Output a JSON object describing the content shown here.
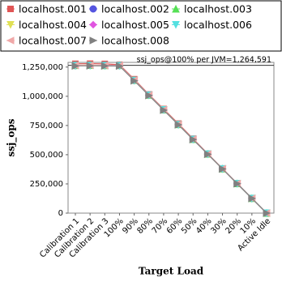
{
  "chart_data": {
    "type": "line",
    "x_label": "Target Load",
    "y_label": "ssj_ops",
    "annotation": "ssj_ops@100% per JVM=1,264,591",
    "reference_line": 1264591,
    "categories": [
      "Calibration 1",
      "Calibration 2",
      "Calibration 3",
      "100%",
      "90%",
      "80%",
      "70%",
      "60%",
      "50%",
      "40%",
      "30%",
      "20%",
      "10%",
      "Active Idle"
    ],
    "ylim": [
      0,
      1290000
    ],
    "yticks": [
      0,
      {
        "value": 250000,
        "label": "250,000"
      },
      {
        "value": 500000,
        "label": "500,000"
      },
      {
        "value": 750000,
        "label": "750,000"
      },
      {
        "value": 1000000,
        "label": "1,000,000"
      },
      {
        "value": 1250000,
        "label": "1,250,000"
      }
    ],
    "grid": false,
    "series": [
      {
        "name": "localhost.001",
        "color": "#e05555",
        "marker": "square",
        "values": [
          1278000,
          1279000,
          1277000,
          1270000,
          1146000,
          1016000,
          891000,
          766000,
          637000,
          509000,
          382000,
          255000,
          128000,
          0
        ]
      },
      {
        "name": "localhost.002",
        "color": "#5555e0",
        "marker": "circle",
        "values": [
          1263000,
          1264000,
          1263000,
          1263000,
          1136000,
          1010000,
          884000,
          758000,
          631000,
          505000,
          379000,
          253000,
          126000,
          0
        ]
      },
      {
        "name": "localhost.003",
        "color": "#55e055",
        "marker": "triangle-up",
        "values": [
          1265000,
          1266000,
          1264000,
          1265000,
          1138000,
          1011000,
          885000,
          759000,
          632000,
          506000,
          380000,
          253000,
          127000,
          0
        ]
      },
      {
        "name": "localhost.004",
        "color": "#e0e055",
        "marker": "triangle-down",
        "values": [
          1262000,
          1263000,
          1262000,
          1261000,
          1135000,
          1009000,
          883000,
          757000,
          631000,
          505000,
          378000,
          252000,
          126000,
          0
        ]
      },
      {
        "name": "localhost.005",
        "color": "#e055e0",
        "marker": "diamond",
        "values": [
          1264000,
          1265000,
          1264000,
          1264000,
          1137000,
          1011000,
          884000,
          758000,
          632000,
          506000,
          379000,
          253000,
          126000,
          0
        ]
      },
      {
        "name": "localhost.006",
        "color": "#55e0e0",
        "marker": "triangle-down",
        "values": [
          1263000,
          1264000,
          1263000,
          1262000,
          1136000,
          1010000,
          884000,
          757000,
          631000,
          505000,
          379000,
          252000,
          126000,
          0
        ]
      },
      {
        "name": "localhost.007",
        "color": "#f0a8a8",
        "marker": "triangle-left",
        "values": [
          1264000,
          1265000,
          1263000,
          1263000,
          1137000,
          1010000,
          884000,
          758000,
          632000,
          505000,
          379000,
          253000,
          126000,
          0
        ]
      },
      {
        "name": "localhost.008",
        "color": "#808080",
        "marker": "triangle-right",
        "values": [
          1260000,
          1261000,
          1260000,
          1259000,
          1133000,
          1007000,
          881000,
          756000,
          630000,
          504000,
          378000,
          252000,
          126000,
          0
        ]
      }
    ]
  }
}
